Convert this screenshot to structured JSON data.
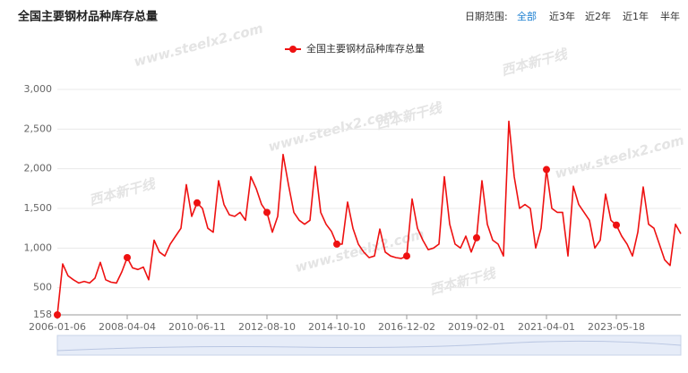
{
  "header": {
    "title": "全国主要钢材品种库存总量",
    "range_label": "日期范围:",
    "range_options": [
      "全部",
      "近3年",
      "近2年",
      "近1年",
      "半年"
    ],
    "active_option": 0
  },
  "watermarks": [
    "www.steelx2.com",
    "西本新干线"
  ],
  "chart_data": {
    "type": "line",
    "categories": [
      "2006-01-06",
      null,
      null,
      null,
      null,
      null,
      null,
      null,
      null,
      null,
      null,
      null,
      null,
      "2008-04-04",
      null,
      null,
      null,
      null,
      null,
      null,
      null,
      null,
      null,
      null,
      null,
      null,
      "2010-06-11",
      null,
      null,
      null,
      null,
      null,
      null,
      null,
      null,
      null,
      null,
      null,
      null,
      "2012-08-10",
      null,
      null,
      null,
      null,
      null,
      null,
      null,
      null,
      null,
      null,
      null,
      null,
      "2014-10-10",
      null,
      null,
      null,
      null,
      null,
      null,
      null,
      null,
      null,
      null,
      null,
      null,
      "2016-12-02",
      null,
      null,
      null,
      null,
      null,
      null,
      null,
      null,
      null,
      null,
      null,
      null,
      "2019-02-01",
      null,
      null,
      null,
      null,
      null,
      null,
      null,
      null,
      null,
      null,
      null,
      null,
      "2021-04-01",
      null,
      null,
      null,
      null,
      null,
      null,
      null,
      null,
      null,
      null,
      null,
      null,
      "2023-05-18",
      null,
      null,
      null,
      null,
      null,
      null,
      null,
      null,
      null,
      null,
      null,
      null
    ],
    "series": [
      {
        "name": "全国主要钢材品种库存总量",
        "color": "#ee1111",
        "values": [
          158,
          800,
          650,
          600,
          560,
          580,
          560,
          620,
          820,
          600,
          570,
          560,
          700,
          880,
          750,
          730,
          760,
          600,
          1100,
          950,
          900,
          1050,
          1150,
          1250,
          1800,
          1400,
          1570,
          1500,
          1250,
          1200,
          1850,
          1550,
          1420,
          1400,
          1450,
          1350,
          1900,
          1750,
          1550,
          1450,
          1200,
          1400,
          2180,
          1800,
          1450,
          1350,
          1300,
          1350,
          2030,
          1450,
          1300,
          1210,
          1050,
          1050,
          1580,
          1250,
          1050,
          950,
          880,
          900,
          1240,
          950,
          900,
          880,
          870,
          900,
          1620,
          1250,
          1100,
          980,
          1000,
          1050,
          1900,
          1300,
          1050,
          1000,
          1150,
          950,
          1130,
          1850,
          1300,
          1100,
          1050,
          900,
          2600,
          1900,
          1500,
          1550,
          1500,
          1000,
          1250,
          1990,
          1500,
          1450,
          1450,
          900,
          1780,
          1550,
          1450,
          1350,
          1000,
          1100,
          1680,
          1350,
          1290,
          1150,
          1050,
          900,
          1200,
          1770,
          1300,
          1250,
          1050,
          850,
          780,
          1300,
          1180
        ]
      }
    ],
    "ylim": [
      158,
      3000
    ],
    "yticks": [
      158,
      500,
      {
        "value": 1000,
        "label": "1,000"
      },
      {
        "value": 1500,
        "label": "1,500"
      },
      {
        "value": 2000,
        "label": "2,000"
      },
      {
        "value": 2500,
        "label": "2,500"
      },
      {
        "value": 3000,
        "label": "3,000"
      }
    ],
    "grid": true
  }
}
